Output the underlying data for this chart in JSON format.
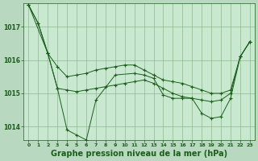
{
  "background_color": "#b8d8c0",
  "plot_bg_color": "#c8e8d0",
  "grid_color": "#90b890",
  "line_color": "#1a5e1a",
  "marker_color": "#1a5e1a",
  "xlabel": "Graphe pression niveau de la mer (hPa)",
  "xlabel_fontsize": 7,
  "ylim": [
    1013.6,
    1017.7
  ],
  "xlim": [
    -0.5,
    23.5
  ],
  "yticks": [
    1014,
    1015,
    1016,
    1017
  ],
  "xticks": [
    0,
    1,
    2,
    3,
    4,
    5,
    6,
    7,
    8,
    9,
    10,
    11,
    12,
    13,
    14,
    15,
    16,
    17,
    18,
    19,
    20,
    21,
    22,
    23
  ],
  "series": [
    [
      1017.65,
      1017.1,
      1016.2,
      1015.15,
      1013.9,
      1013.75,
      1013.6,
      1014.8,
      1015.55,
      1015.6,
      1015.55,
      1015.45,
      1014.95,
      1014.85,
      1014.85,
      1014.85,
      1014.4,
      1014.25,
      1014.3,
      1014.85,
      1016.1,
      1016.55
    ],
    [
      1017.65,
      1017.1,
      1016.2,
      1015.8,
      1015.5,
      1015.55,
      1015.6,
      1015.7,
      1015.75,
      1015.8,
      1015.85,
      1015.85,
      1015.7,
      1015.55,
      1015.4,
      1015.35,
      1015.3,
      1015.2,
      1015.1,
      1015.0,
      1015.0,
      1015.1,
      1016.1,
      1016.55
    ],
    [
      1017.65,
      1016.2,
      1015.15,
      1015.1,
      1015.05,
      1015.1,
      1015.15,
      1015.2,
      1015.25,
      1015.3,
      1015.35,
      1015.4,
      1015.3,
      1015.15,
      1015.0,
      1014.9,
      1014.85,
      1014.8,
      1014.75,
      1014.8,
      1015.0,
      1016.1,
      1016.55
    ]
  ],
  "series_x": [
    [
      0,
      1,
      2,
      3,
      4,
      5,
      6,
      7,
      9,
      11,
      12,
      13,
      14,
      15,
      16,
      17,
      18,
      19,
      20,
      21,
      22,
      23
    ],
    [
      0,
      1,
      2,
      3,
      4,
      5,
      6,
      7,
      8,
      9,
      10,
      11,
      12,
      13,
      14,
      15,
      16,
      17,
      18,
      19,
      20,
      21,
      22,
      23
    ],
    [
      0,
      2,
      3,
      4,
      5,
      6,
      7,
      8,
      9,
      10,
      11,
      12,
      13,
      14,
      15,
      16,
      17,
      18,
      19,
      20,
      21,
      22,
      23
    ]
  ]
}
